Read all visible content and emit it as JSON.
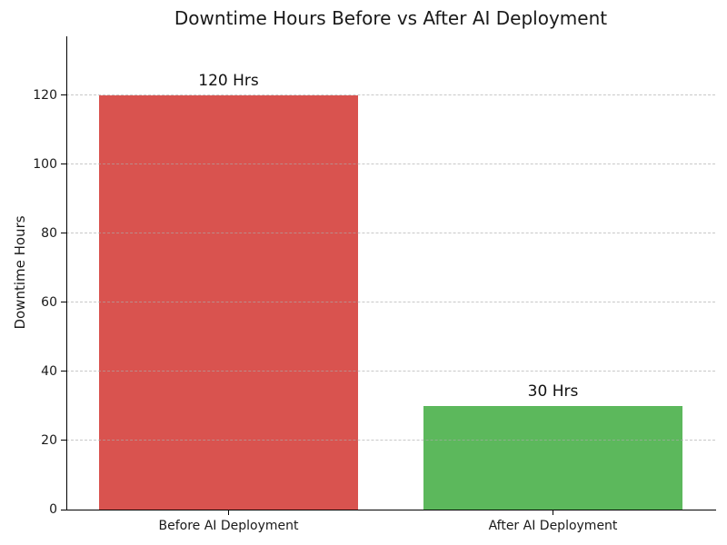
{
  "chart_data": {
    "type": "bar",
    "title": "Downtime Hours Before vs After AI Deployment",
    "xlabel": "",
    "ylabel": "Downtime Hours",
    "categories": [
      "Before AI Deployment",
      "After AI Deployment"
    ],
    "values": [
      120,
      30
    ],
    "bar_labels": [
      "120 Hrs",
      "30 Hrs"
    ],
    "bar_colors": [
      "#d9534f",
      "#5cb85c"
    ],
    "yticks": [
      0,
      20,
      40,
      60,
      80,
      100,
      120
    ],
    "ylim": [
      0,
      137
    ],
    "bar_width_fraction": 0.8,
    "grid": {
      "axis": "y",
      "style": "dashed",
      "color": "#c8c8c8",
      "drawn_above_bars": true
    },
    "legend": "none",
    "background_color": "#ffffff",
    "text_color": "#1a1a1a",
    "spine_color": "#000000"
  }
}
